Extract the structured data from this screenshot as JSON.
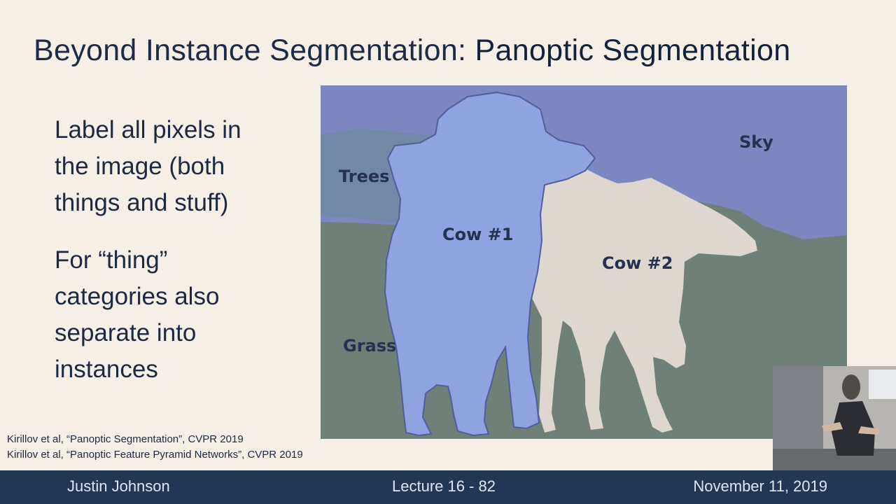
{
  "title": {
    "prefix": "Beyond Instance Segmentation: ",
    "highlight": "Panoptic Segmentation"
  },
  "bullets": [
    "Label all pixels in the image (both things and stuff)",
    "For “thing” categories also separate into instances"
  ],
  "image_labels": {
    "sky": "Sky",
    "trees": "Trees",
    "cow1": "Cow #1",
    "cow2": "Cow #2",
    "grass": "Grass"
  },
  "citations": [
    "Kirillov et al, “Panoptic Segmentation”, CVPR 2019",
    "Kirillov et al, “Panoptic Feature Pyramid Networks”, CVPR 2019"
  ],
  "footer": {
    "author": "Justin Johnson",
    "lecture": "Lecture 16 - 82",
    "date": "November 11, 2019"
  },
  "colors": {
    "background": "#f6efe8",
    "sky": "#7c87bf",
    "trees": "#7188a6",
    "grass": "#6f8078",
    "cow1": "#8ea3df",
    "cow2": "#ddd7cf",
    "footer": "#223754"
  }
}
